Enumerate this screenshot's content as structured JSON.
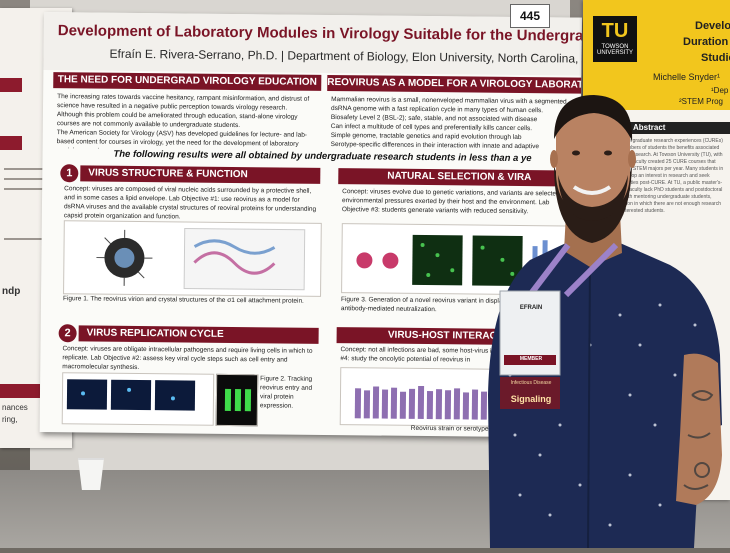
{
  "scene": {
    "description_tag": "poster-session-photo",
    "colors": {
      "maroon": "#7a1426",
      "gold": "#f2c61d",
      "shirt": "#1d2a54",
      "lanyard": "#9c82c9"
    }
  },
  "poster": {
    "number": "445",
    "title": "Development of Laboratory Modules in Virology Suitable for the Undergraduate Class",
    "authors": "Efraín E. Rivera-Serrano, Ph.D. | Department of Biology, Elon University, North Carolina, USA",
    "need_head": "THE NEED FOR UNDERGRAD VIROLOGY EDUCATION",
    "reovirus_head": "REOVIRUS AS A MODEL FOR A VIROLOGY LABORATORY",
    "need_text_1": "The increasing rates towards vaccine hesitancy, rampant misinformation, and distrust of science have resulted in a negative public perception towards virology research.",
    "need_text_2": "Although this problem could be ameliorated through education, stand-alone virology courses are not commonly available to undergraduate students.",
    "need_text_3": "The American Society for Virology (ASV) has developed guidelines for lecture- and lab-based content for courses in virology, yet the need for the development of laboratory modules remain.",
    "reo_text_1": "Mammalian reovirus is a small, nonenveloped mammalian virus with a segmented dsRNA genome with a fast replication cycle in many types of human cells.",
    "reo_text_2": "Biosafety Level 2 (BSL-2); safe, stable, and not associated with disease",
    "reo_text_3": "Can infect a multitude of cell types and preferentially kills cancer cells.",
    "reo_text_4": "Simple genome, tractable genetics and rapid evolution through lab",
    "reo_text_5": "Serotype-specific differences in their interaction with innate and adaptive",
    "center_line": "The following results were all obtained by undergraduate research students in less than a ye",
    "sec1_num": "1",
    "sec1_head": "VIRUS STRUCTURE & FUNCTION",
    "sec1_text": "Concept: viruses are composed of viral nucleic acids surrounded by a protective shell, and in some cases a lipid envelope. Lab Objective #1: use reovirus as a model for dsRNA viruses and the available crystal structures of reoviral proteins for understanding capsid protein organization and function.",
    "fig1_caption": "Figure 1. The reovirus virion and crystal structures of the σ1 cell attachment protein.",
    "sec2_num": "2",
    "sec2_head": "VIRUS REPLICATION CYCLE",
    "sec2_text": "Concept: viruses are obligate intracellular pathogens and require living cells in which to replicate. Lab Objective #2: assess key viral cycle steps such as cell entry and macromolecular synthesis.",
    "fig2_caption": "Figure 2. Tracking reovirus entry and viral protein expression.",
    "natsel_head": "NATURAL SELECTION & VIRA",
    "natsel_text": "Concept: viruses evolve due to genetic variations, and variants are selected by environmental pressures exerted by their host and the environment. Lab Objective #3: students generate variants with reduced sensitivity.",
    "fig3_caption": "Figure 3. Generation of a novel reovirus variant in displays enhanced SC6 antibody-mediated neutralization.",
    "vhi_head": "VIRUS-HOST INTERACTIONS",
    "vhi_text": "Concept: not all infections are bad, some host-virus interactions. Lab Objective #4: study the oncolytic potential of reovirus in",
    "chart_axis": "Reovirus strain or serotype"
  },
  "right_poster": {
    "logo_text": "TU",
    "logo_sub": "TOWSON UNIVERSITY",
    "title_1": "Developme",
    "title_2": "Duration High",
    "title_3": "Studie",
    "author": "Michelle Snyder¹",
    "affil_1": "¹Dep",
    "affil_2": "²STEM Prog",
    "abstract_head": "Abstract",
    "abstract_text": "Course-based undergraduate research experiences (CUREs) extend to large numbers of students the benefits associated with undergraduate research. At Towson University (TU), with support from HHMI, faculty created 25 CURE courses that engage hundreds of STEM majors per year. Many students in these courses develop an interest in research and seek additional opportunities post-CURE. At TU, a public master's-degree institution, faculty lack PhD students and postdoctoral fellows to assist with mentoring undergraduate students, leading to a situation in which there are not enough research placements for interested students."
  },
  "left_poster": {
    "fragment_1": "ndp",
    "fragment_2": "nances",
    "fragment_3": "ring,"
  },
  "badge": {
    "name": "EFRAIN",
    "role": "MEMBER",
    "ribbon": "Signaling",
    "ribbon_sub": "Infectious Disease"
  }
}
